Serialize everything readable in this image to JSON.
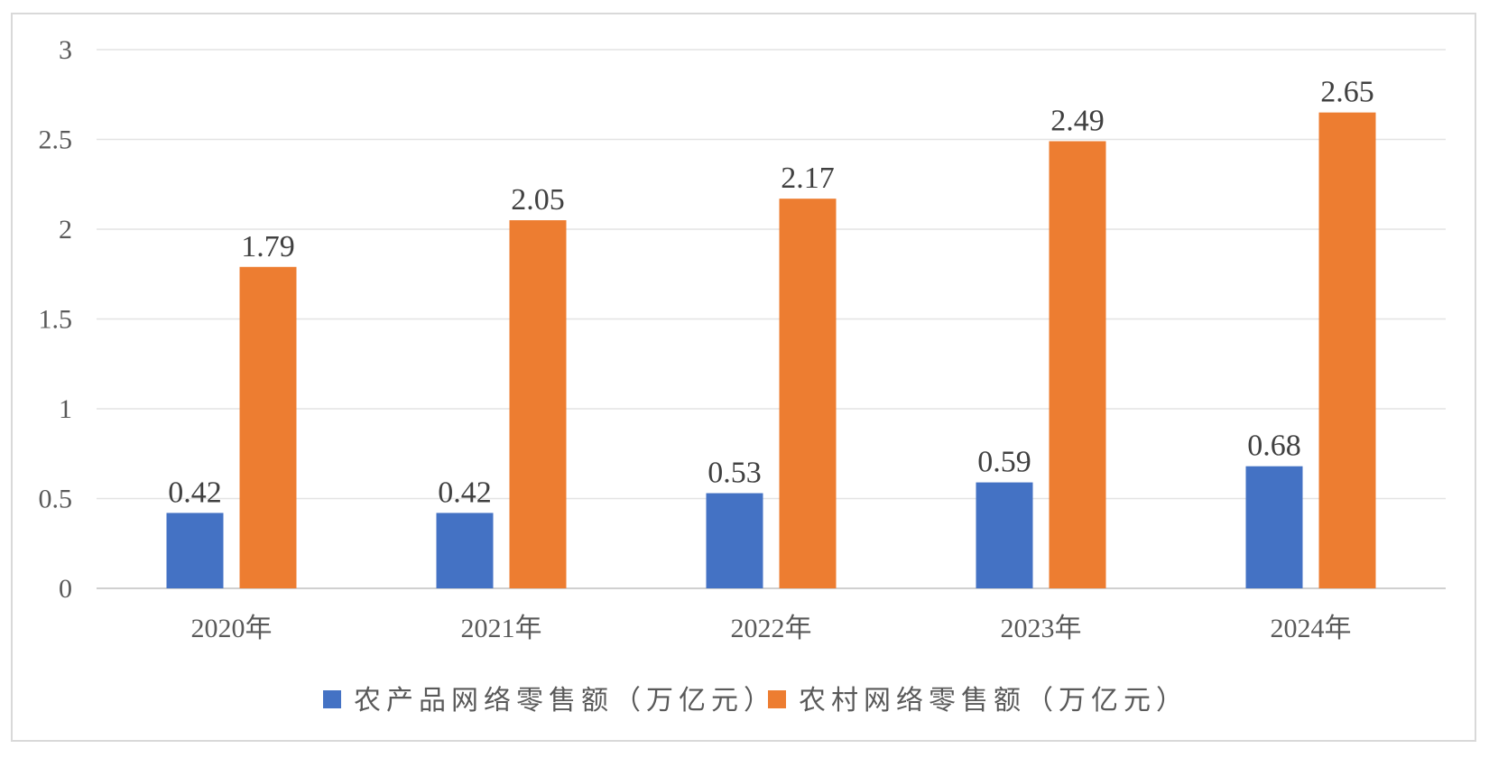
{
  "chart_data": {
    "type": "bar",
    "title": "",
    "xlabel": "",
    "ylabel": "",
    "ylim": [
      0,
      3
    ],
    "yticks": [
      0,
      0.5,
      1,
      1.5,
      2,
      2.5,
      3
    ],
    "ytick_labels": [
      "0",
      "0.5",
      "1",
      "1.5",
      "2",
      "2.5",
      "3"
    ],
    "grid": true,
    "legend_position": "bottom",
    "categories": [
      "2020年",
      "2021年",
      "2022年",
      "2023年",
      "2024年"
    ],
    "series": [
      {
        "name": "农产品网络零售额（万亿元）",
        "color": "#4472C4",
        "values": [
          0.42,
          0.42,
          0.53,
          0.59,
          0.68
        ],
        "labels": [
          "0.42",
          "0.42",
          "0.53",
          "0.59",
          "0.68"
        ]
      },
      {
        "name": "农村网络零售额（万亿元）",
        "color": "#ED7D31",
        "values": [
          1.79,
          2.05,
          2.17,
          2.49,
          2.65
        ],
        "labels": [
          "1.79",
          "2.05",
          "2.17",
          "2.49",
          "2.65"
        ]
      }
    ]
  }
}
